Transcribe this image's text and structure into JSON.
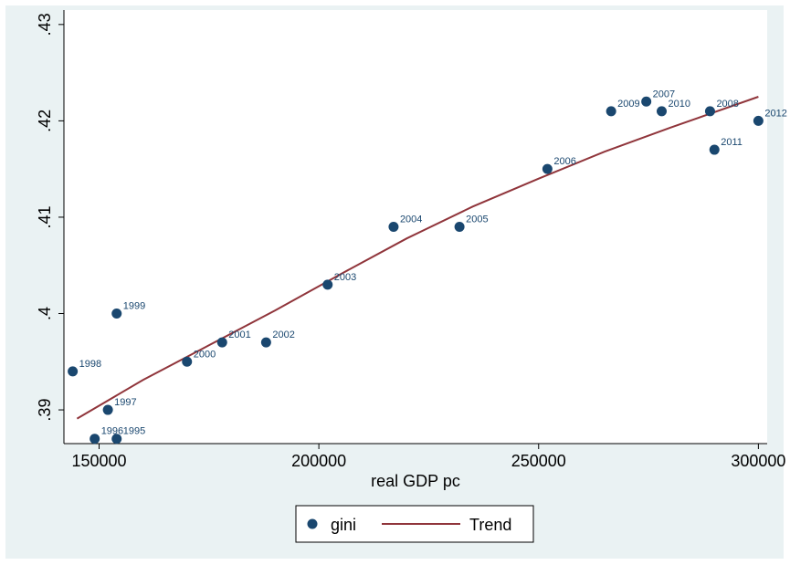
{
  "chart_data": {
    "type": "scatter",
    "xlabel": "real GDP pc",
    "ylabel": "",
    "xlim": [
      142000,
      302000
    ],
    "ylim": [
      0.3865,
      0.4315
    ],
    "x_ticks": [
      150000,
      200000,
      250000,
      300000
    ],
    "x_tick_labels": [
      "150000",
      "200000",
      "250000",
      "300000"
    ],
    "y_ticks": [
      0.39,
      0.4,
      0.41,
      0.42,
      0.43
    ],
    "y_tick_labels": [
      ".39",
      ".4",
      ".41",
      ".42",
      ".43"
    ],
    "grid": false,
    "legend": {
      "placement": "bottom",
      "entries": [
        {
          "label": "gini",
          "kind": "marker",
          "color": "#1a476f"
        },
        {
          "label": "Trend",
          "kind": "line",
          "color": "#90353b"
        }
      ]
    },
    "series": [
      {
        "name": "gini",
        "marker_color": "#1a476f",
        "points": [
          {
            "label": "1995",
            "x": 154000,
            "y": 0.387
          },
          {
            "label": "1996",
            "x": 149000,
            "y": 0.387
          },
          {
            "label": "1997",
            "x": 152000,
            "y": 0.39
          },
          {
            "label": "1998",
            "x": 144000,
            "y": 0.394
          },
          {
            "label": "1999",
            "x": 154000,
            "y": 0.4
          },
          {
            "label": "2000",
            "x": 170000,
            "y": 0.395
          },
          {
            "label": "2001",
            "x": 178000,
            "y": 0.397
          },
          {
            "label": "2002",
            "x": 188000,
            "y": 0.397
          },
          {
            "label": "2003",
            "x": 202000,
            "y": 0.403
          },
          {
            "label": "2004",
            "x": 217000,
            "y": 0.409
          },
          {
            "label": "2005",
            "x": 232000,
            "y": 0.409
          },
          {
            "label": "2006",
            "x": 252000,
            "y": 0.415
          },
          {
            "label": "2007",
            "x": 274500,
            "y": 0.422
          },
          {
            "label": "2008",
            "x": 289000,
            "y": 0.421
          },
          {
            "label": "2009",
            "x": 266500,
            "y": 0.421
          },
          {
            "label": "2010",
            "x": 278000,
            "y": 0.421
          },
          {
            "label": "2011",
            "x": 290000,
            "y": 0.417
          },
          {
            "label": "2012",
            "x": 300000,
            "y": 0.42
          }
        ]
      },
      {
        "name": "Trend",
        "line_color": "#90353b",
        "x": [
          145000,
          160000,
          175000,
          190000,
          205000,
          220000,
          235000,
          250000,
          265000,
          280000,
          300000
        ],
        "y": [
          0.3891,
          0.3931,
          0.3967,
          0.4003,
          0.4041,
          0.4078,
          0.4111,
          0.414,
          0.4168,
          0.4193,
          0.4225
        ]
      }
    ]
  }
}
